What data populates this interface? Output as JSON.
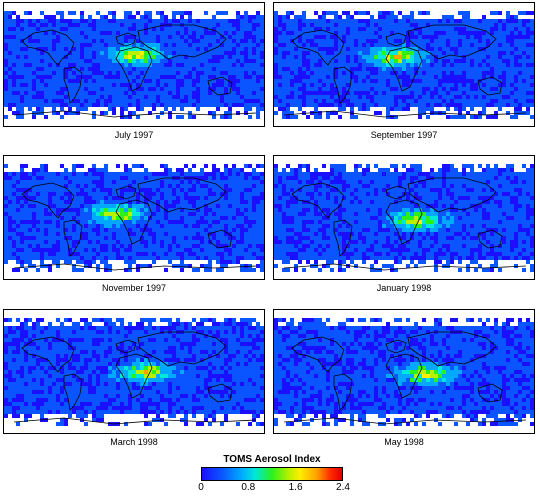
{
  "panels": [
    {
      "caption": "July 1997"
    },
    {
      "caption": "September 1997"
    },
    {
      "caption": "November 1997"
    },
    {
      "caption": "January 1998"
    },
    {
      "caption": "March 1998"
    },
    {
      "caption": "May 1998"
    }
  ],
  "legend": {
    "title": "TOMS Aerosol Index",
    "ticks": [
      "0",
      "0.8",
      "1.6",
      "2.4"
    ],
    "colors": [
      "#1a10ff",
      "#00a8ff",
      "#2cf01c",
      "#ffee00",
      "#ff2800"
    ]
  }
}
